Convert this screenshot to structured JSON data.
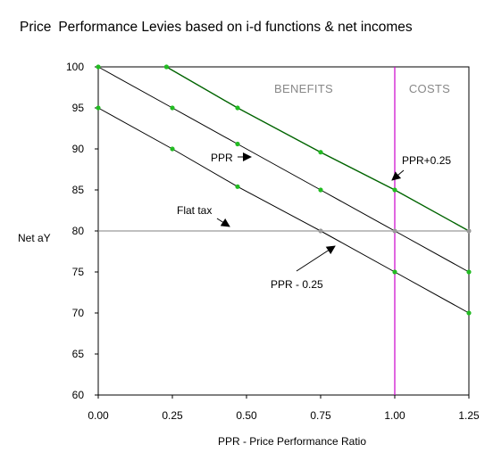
{
  "title": {
    "prefix": "Price",
    "main": "Performance Levies based on i-d functions & net incomes"
  },
  "chart_data": {
    "type": "line",
    "xlabel": "PPR - Price Performance Ratio",
    "ylabel": "Net aY",
    "xlim": [
      0,
      1.25
    ],
    "ylim": [
      60,
      100
    ],
    "x_ticks": [
      "0.00",
      "0.25",
      "0.50",
      "0.75",
      "1.00",
      "1.25"
    ],
    "y_ticks": [
      "100",
      "95",
      "90",
      "85",
      "80",
      "75",
      "70",
      "65",
      "60"
    ],
    "grid": false,
    "colors": {
      "ppr_plus": "#006400",
      "ppr": "#000000",
      "ppr_minus": "#000000",
      "flat_tax": "#808080",
      "marker": "#22bb22",
      "marker_gray": "#999999",
      "vline": "#cc00cc"
    },
    "series": [
      {
        "name": "PPR+0.25",
        "x": [
          0.23,
          0.47,
          0.75,
          1.0,
          1.25
        ],
        "y": [
          100,
          95,
          89.6,
          85,
          80
        ]
      },
      {
        "name": "PPR",
        "x": [
          0.0,
          0.25,
          0.47,
          0.75,
          1.0,
          1.25
        ],
        "y": [
          100,
          95,
          90.6,
          85,
          80,
          75
        ]
      },
      {
        "name": "PPR - 0.25",
        "x": [
          0.0,
          0.25,
          0.47,
          0.75,
          1.0,
          1.25
        ],
        "y": [
          95,
          90,
          85.4,
          80,
          75,
          70
        ]
      },
      {
        "name": "Flat tax",
        "x": [
          0.0,
          1.25
        ],
        "y": [
          80,
          80
        ]
      }
    ],
    "vline_x": 1.0,
    "regions": [
      "BENEFITS",
      "COSTS"
    ],
    "annotations": [
      "PPR",
      "PPR+0.25",
      "Flat tax",
      "PPR - 0.25"
    ]
  }
}
